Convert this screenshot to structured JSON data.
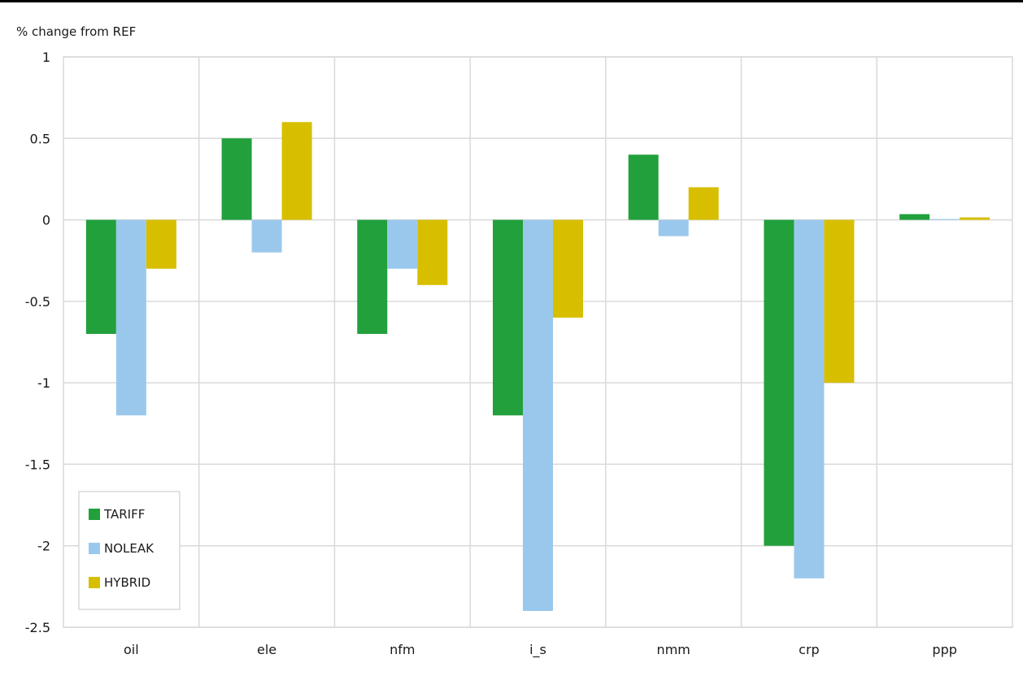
{
  "chart_data": {
    "type": "bar",
    "title": "",
    "xlabel": "",
    "ylabel": "% change from REF",
    "ylim": [
      -2.5,
      1
    ],
    "yticks": [
      1,
      0.5,
      0,
      -0.5,
      -1,
      -1.5,
      -2,
      -2.5
    ],
    "ytick_labels": [
      "1",
      "0.5",
      "0",
      "-0.5",
      "-1",
      "-1.5",
      "-2",
      "-2.5"
    ],
    "grid": true,
    "legend_position": "bottom-left",
    "categories": [
      "oil",
      "ele",
      "nfm",
      "i_s",
      "nmm",
      "crp",
      "ppp"
    ],
    "series": [
      {
        "name": "TARIFF",
        "color": "#21a03c",
        "values": [
          -0.7,
          0.5,
          -0.7,
          -1.2,
          0.4,
          -2.0,
          0.035
        ]
      },
      {
        "name": "NOLEAK",
        "color": "#9ac8ec",
        "values": [
          -1.2,
          -0.2,
          -0.3,
          -2.4,
          -0.1,
          -2.2,
          0.005
        ]
      },
      {
        "name": "HYBRID",
        "color": "#d7bf00",
        "values": [
          -0.3,
          0.6,
          -0.4,
          -0.6,
          0.2,
          -1.0,
          0.015
        ]
      }
    ]
  }
}
